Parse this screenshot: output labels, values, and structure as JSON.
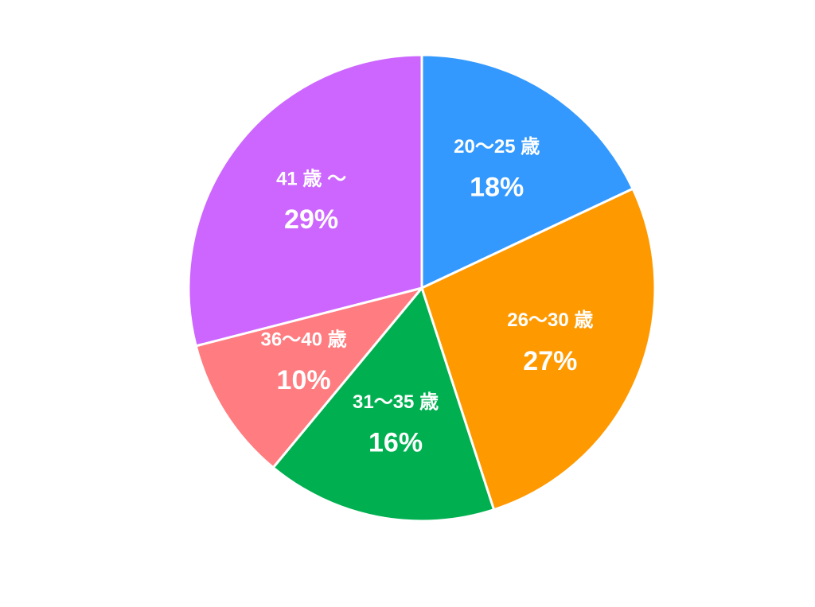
{
  "chart_data": {
    "type": "pie",
    "categories": [
      "20〜25 歳",
      "26〜30 歳",
      "31〜35 歳",
      "36〜40 歳",
      "41 歳 〜"
    ],
    "values": [
      18,
      27,
      16,
      10,
      29
    ],
    "value_labels": [
      "18%",
      "27%",
      "16%",
      "10%",
      "29%"
    ],
    "colors": [
      "#3399ff",
      "#ff9900",
      "#00b050",
      "#ff7c80",
      "#cc66ff"
    ]
  }
}
